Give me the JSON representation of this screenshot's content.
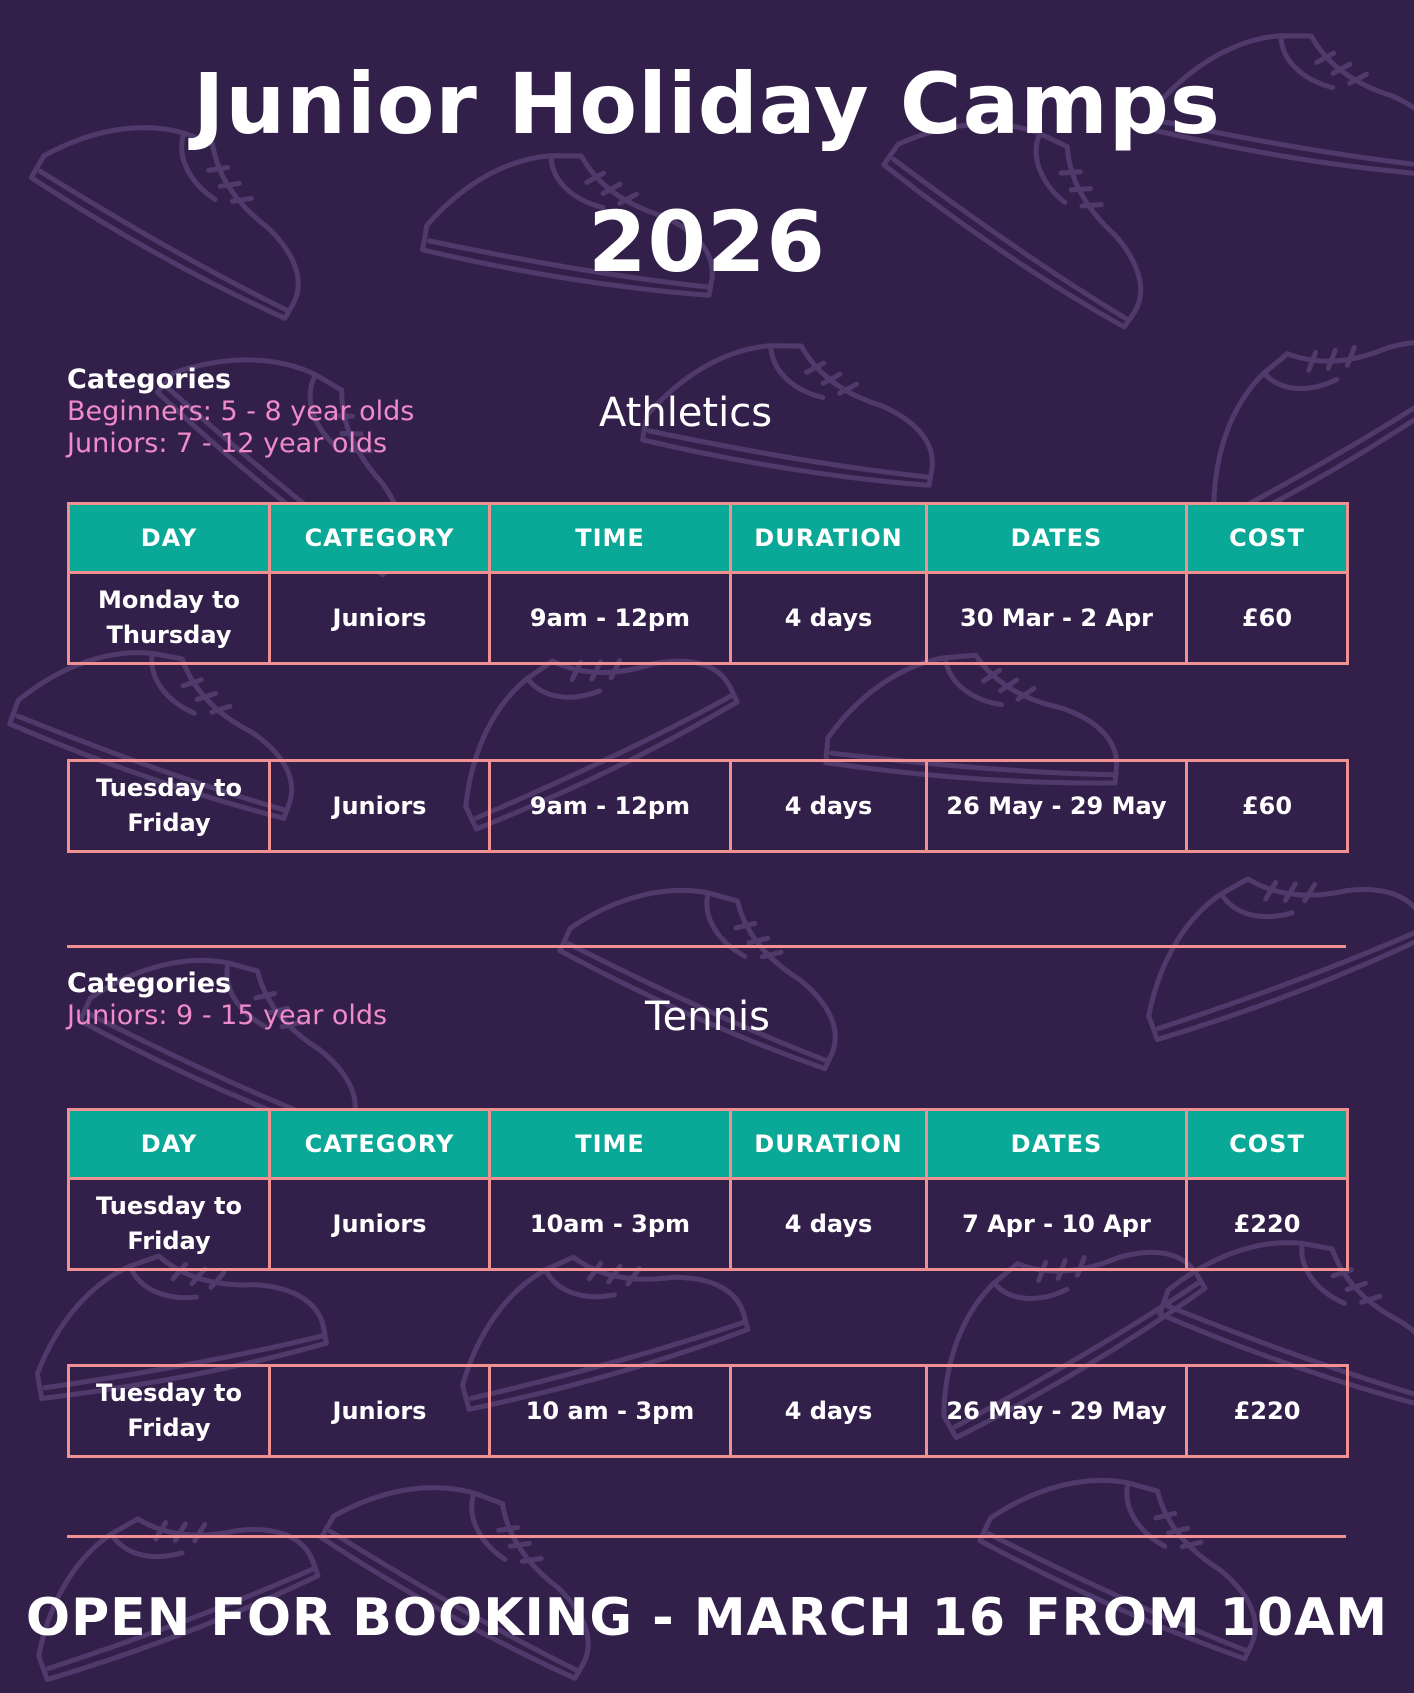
{
  "title_line1": "Junior Holiday Camps",
  "title_line2": "2026",
  "athletics": {
    "categories_heading": "Categories",
    "category_items": [
      "Beginners: 5 - 8 year olds",
      "Juniors: 7 - 12 year olds"
    ],
    "section_title": "Athletics",
    "headers": [
      "DAY",
      "CATEGORY",
      "TIME",
      "DURATION",
      "DATES",
      "COST"
    ],
    "rows": [
      [
        "Monday to Thursday",
        "Juniors",
        "9am - 12pm",
        "4 days",
        "30 Mar - 2 Apr",
        "£60"
      ],
      [
        "Tuesday to Friday",
        "Juniors",
        "9am - 12pm",
        "4 days",
        "26 May - 29 May",
        "£60"
      ]
    ]
  },
  "tennis": {
    "categories_heading": "Categories",
    "category_items": [
      "Juniors: 9 - 15 year olds"
    ],
    "section_title": "Tennis",
    "headers": [
      "DAY",
      "CATEGORY",
      "TIME",
      "DURATION",
      "DATES",
      "COST"
    ],
    "rows": [
      [
        "Tuesday to Friday",
        "Juniors",
        "10am - 3pm",
        "4 days",
        "7 Apr - 10 Apr",
        "£220"
      ],
      [
        "Tuesday to Friday",
        "Juniors",
        "10 am - 3pm",
        "4 days",
        "26 May - 29 May",
        "£220"
      ]
    ]
  },
  "booking_text": "OPEN FOR BOOKING - MARCH 16 FROM 10AM",
  "colors": {
    "background": "#33204a",
    "header_teal": "#0aa896",
    "border_salmon": "#f09090",
    "category_pink": "#f08ac8"
  }
}
